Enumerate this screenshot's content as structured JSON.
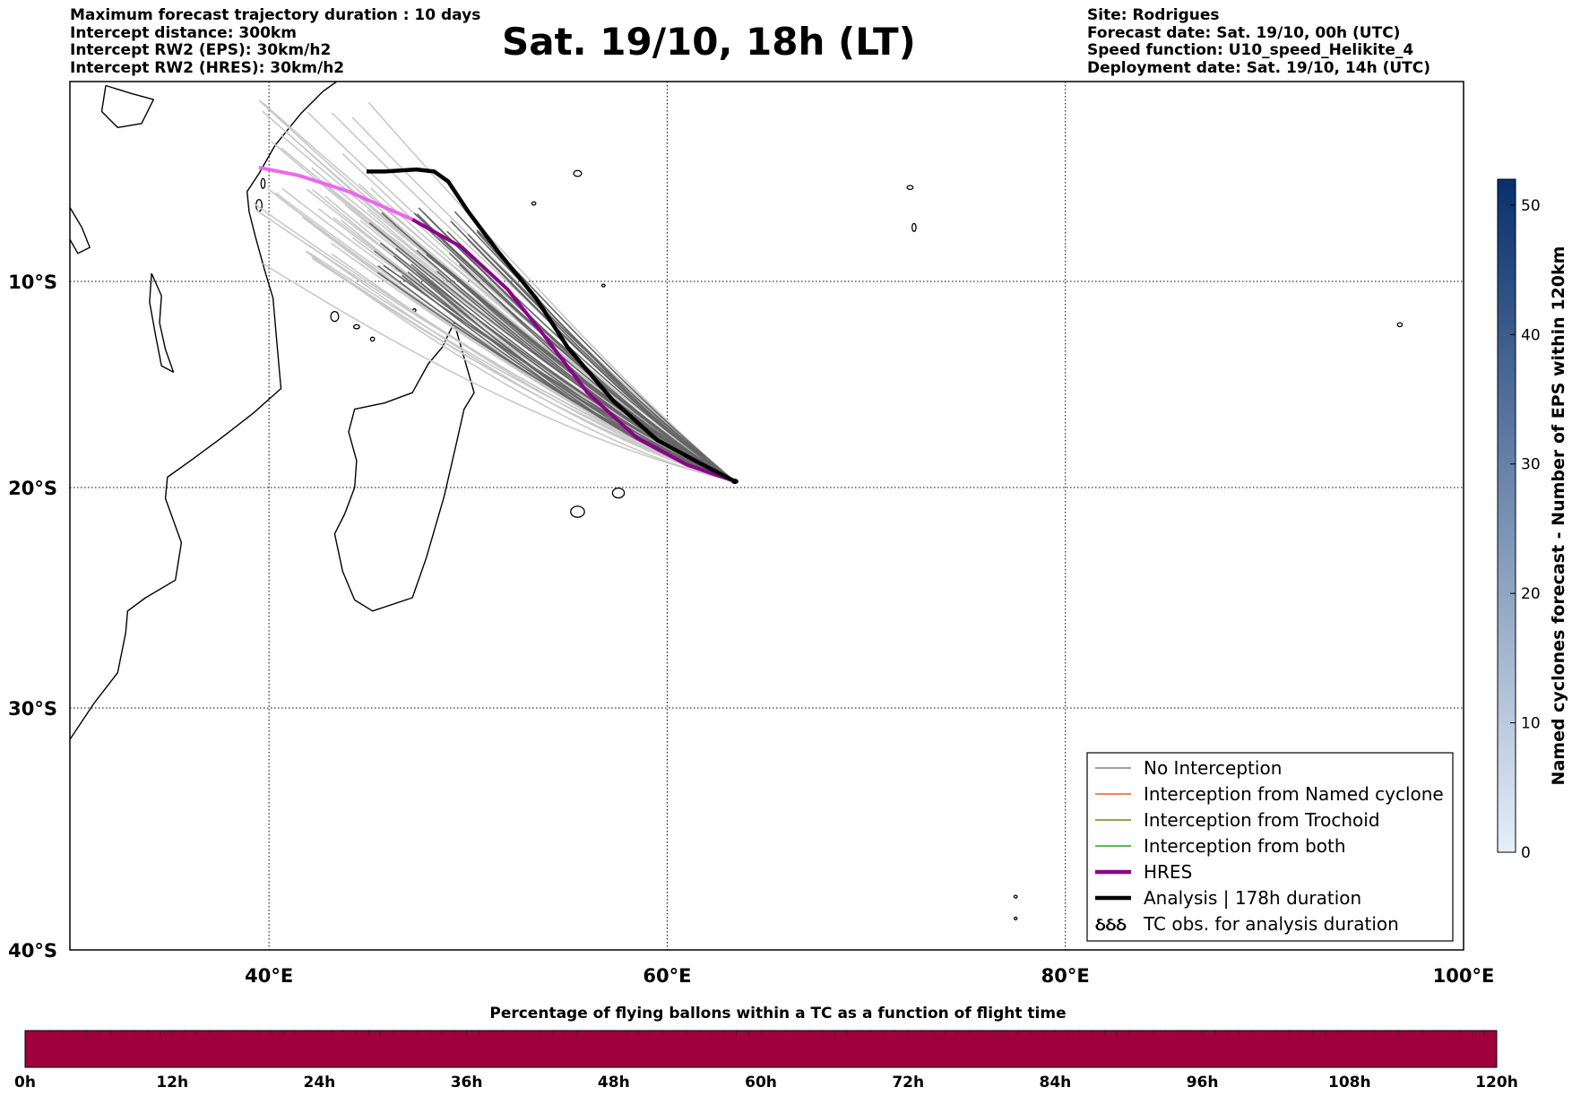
{
  "header": {
    "title": "Sat. 19/10, 18h (LT)",
    "left_lines": [
      "Maximum forecast trajectory duration : 10 days",
      "Intercept distance: 300km",
      "Intercept RW2 (EPS):  30km/h2",
      "Intercept RW2 (HRES): 30km/h2"
    ],
    "right_lines": [
      "Site: Rodrigues",
      "Forecast date: Sat. 19/10, 00h (UTC)",
      "Speed function: U10_speed_Helikite_4",
      "Deployment date: Sat. 19/10, 14h (UTC)"
    ]
  },
  "map": {
    "lon_range": [
      30,
      100
    ],
    "lat_range": [
      -40,
      0
    ],
    "lon_ticks": [
      {
        "value": 40,
        "label": "40°E"
      },
      {
        "value": 60,
        "label": "60°E"
      },
      {
        "value": 80,
        "label": "80°E"
      },
      {
        "value": 100,
        "label": "100°E"
      }
    ],
    "lat_ticks": [
      {
        "value": -10,
        "label": "10°S"
      },
      {
        "value": -20,
        "label": "20°S"
      },
      {
        "value": -30,
        "label": "30°S"
      },
      {
        "value": -40,
        "label": "40°S"
      }
    ],
    "gridlines": "dotted",
    "coastline_color": "#000000",
    "start_point": {
      "lon": 63.4,
      "lat": -19.7
    },
    "hres_track": [
      [
        63.4,
        -19.7
      ],
      [
        61,
        -18.9
      ],
      [
        58.5,
        -17.6
      ],
      [
        56,
        -15.4
      ],
      [
        53.8,
        -12.6
      ],
      [
        52,
        -10.4
      ],
      [
        49.7,
        -8.3
      ],
      [
        47.2,
        -6.9
      ],
      [
        44,
        -5.5
      ],
      [
        41.5,
        -4.7
      ],
      [
        39.5,
        -4.3
      ]
    ],
    "analysis_track": [
      [
        63.4,
        -19.7
      ],
      [
        61.6,
        -18.8
      ],
      [
        59.5,
        -17.7
      ],
      [
        57.3,
        -15.8
      ],
      [
        55,
        -13.2
      ],
      [
        53.4,
        -10.8
      ],
      [
        51.5,
        -8.5
      ],
      [
        50,
        -6.5
      ],
      [
        49,
        -5
      ],
      [
        48.3,
        -4.5
      ],
      [
        47.4,
        -4.4
      ],
      [
        45.8,
        -4.5
      ],
      [
        44.9,
        -4.5
      ]
    ],
    "hres_color": "#8b008b",
    "hres_tail_color": "#ee66ee",
    "analysis_color": "#000000",
    "eps_dark_color": "#666666",
    "eps_light_color": "#c8c8c8"
  },
  "legend": {
    "placement": "lower-right",
    "items": [
      {
        "label": "No Interception",
        "color": "#808080",
        "style": "thin"
      },
      {
        "label": "Interception from Named cyclone",
        "color": "#e8601c",
        "style": "thin"
      },
      {
        "label": "Interception from Trochoid",
        "color": "#8c7a16",
        "style": "thin"
      },
      {
        "label": "Interception from both",
        "color": "#2ca02c",
        "style": "thin"
      },
      {
        "label": "HRES",
        "color": "#8b008b",
        "style": "thick"
      },
      {
        "label": "Analysis | 178h duration",
        "color": "#000000",
        "style": "thick"
      },
      {
        "label": "TC obs. for analysis duration",
        "color": "#000000",
        "style": "symbol",
        "symbol": "ઠઠઠ"
      }
    ]
  },
  "colorbar_right": {
    "label": "Named cyclones forecast - Number of EPS within 120km",
    "range": [
      0,
      52
    ],
    "ticks": [
      0,
      10,
      20,
      30,
      40,
      50
    ],
    "color_low": "#e6eff9",
    "color_high": "#08306b"
  },
  "colorbar_bottom": {
    "title": "Percentage of flying ballons within a TC as a function of flight time",
    "fill_color": "#a0003c",
    "ticks": [
      "0h",
      "12h",
      "24h",
      "36h",
      "48h",
      "60h",
      "72h",
      "84h",
      "96h",
      "108h",
      "120h"
    ]
  }
}
